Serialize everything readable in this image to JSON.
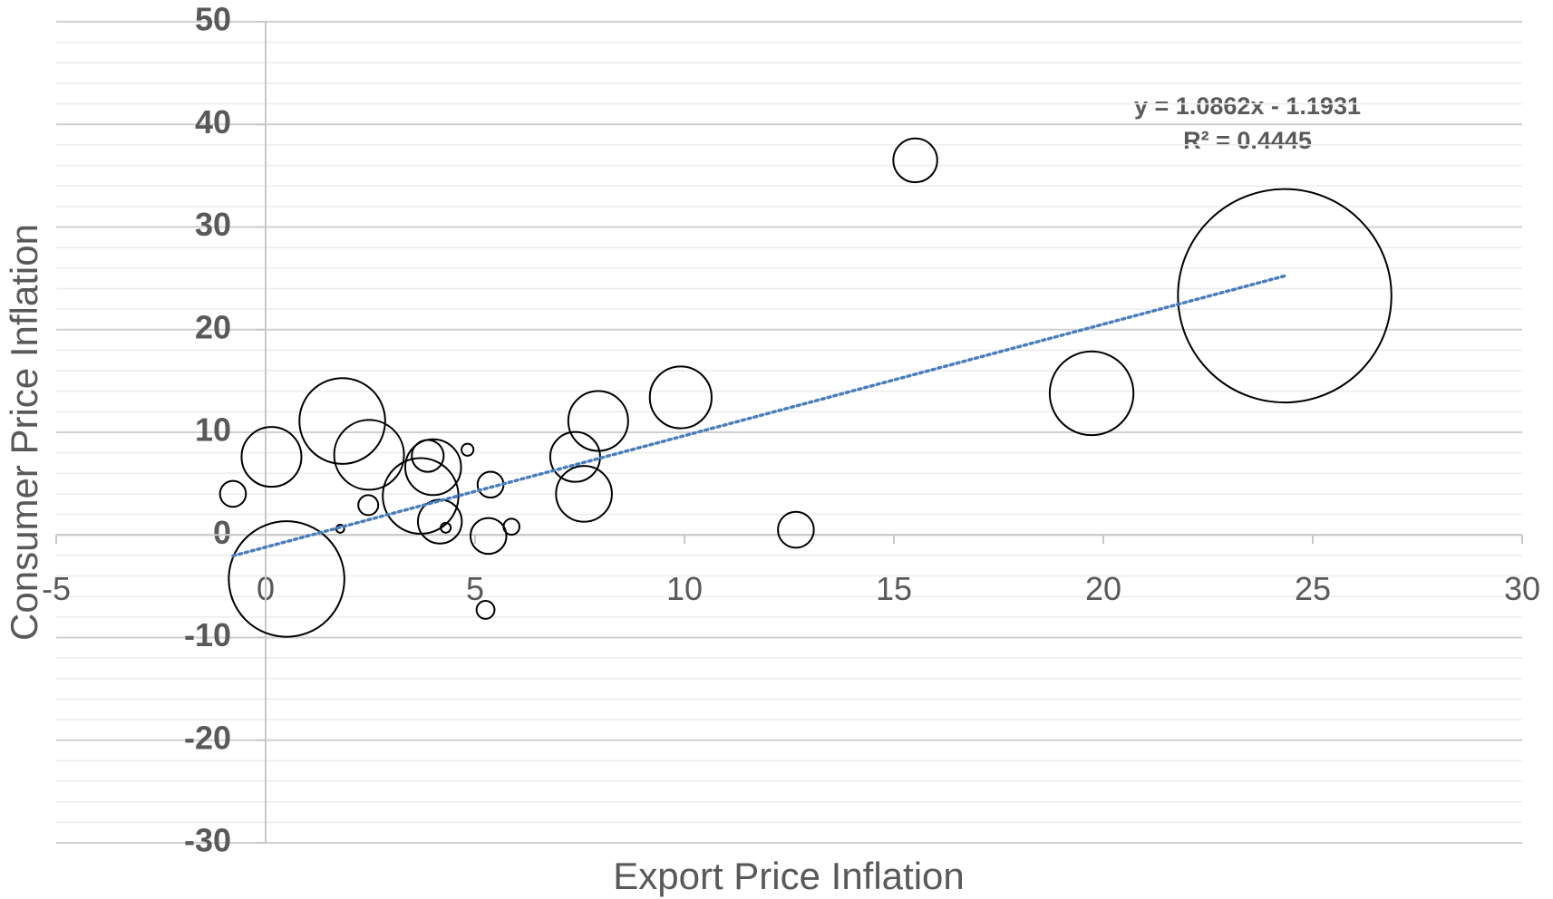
{
  "chart_data": {
    "type": "bubble",
    "x_label": "Export Price Inflation",
    "y_label": "Consumer Price Inflation",
    "xlim": [
      -5,
      30
    ],
    "xticks": [
      -5,
      0,
      5,
      10,
      15,
      20,
      25,
      30
    ],
    "ylim": [
      -30,
      50
    ],
    "yticks": [
      -30,
      -20,
      -10,
      0,
      10,
      20,
      30,
      40,
      50
    ],
    "grid": true,
    "series": [
      {
        "color": "#000000",
        "x": [
          -0.78,
          0.14,
          0.5,
          1.83,
          1.78,
          2.45,
          2.47,
          3.87,
          4.0,
          3.7,
          4.16,
          4.3,
          4.82,
          5.37,
          5.32,
          5.25,
          5.87,
          7.39,
          7.6,
          7.94,
          9.91,
          12.66,
          15.51,
          19.72,
          24.33
        ],
        "values": [
          4.0,
          7.6,
          -4.3,
          11.1,
          0.6,
          2.9,
          7.8,
          7.7,
          6.6,
          3.8,
          1.3,
          0.7,
          8.3,
          4.9,
          -0.1,
          -7.3,
          0.8,
          7.6,
          4.0,
          11.1,
          13.4,
          0.5,
          36.5,
          13.8,
          23.3
        ],
        "sizes": [
          1.69,
          9,
          33.6,
          18.5,
          0.16,
          1,
          12.25,
          2.56,
          7.84,
          14.4,
          4.84,
          0.25,
          0.36,
          1.69,
          3.24,
          0.81,
          0.64,
          6.25,
          7.84,
          9,
          9.61,
          3.24,
          4.84,
          17.64,
          114.5
        ]
      }
    ],
    "trendline": {
      "slope": 1.0862,
      "intercept": -1.1931,
      "color": "#4a7ebb",
      "equation": "y = 1.0862x - 1.1931",
      "r2": "R² = 0.4445"
    }
  }
}
